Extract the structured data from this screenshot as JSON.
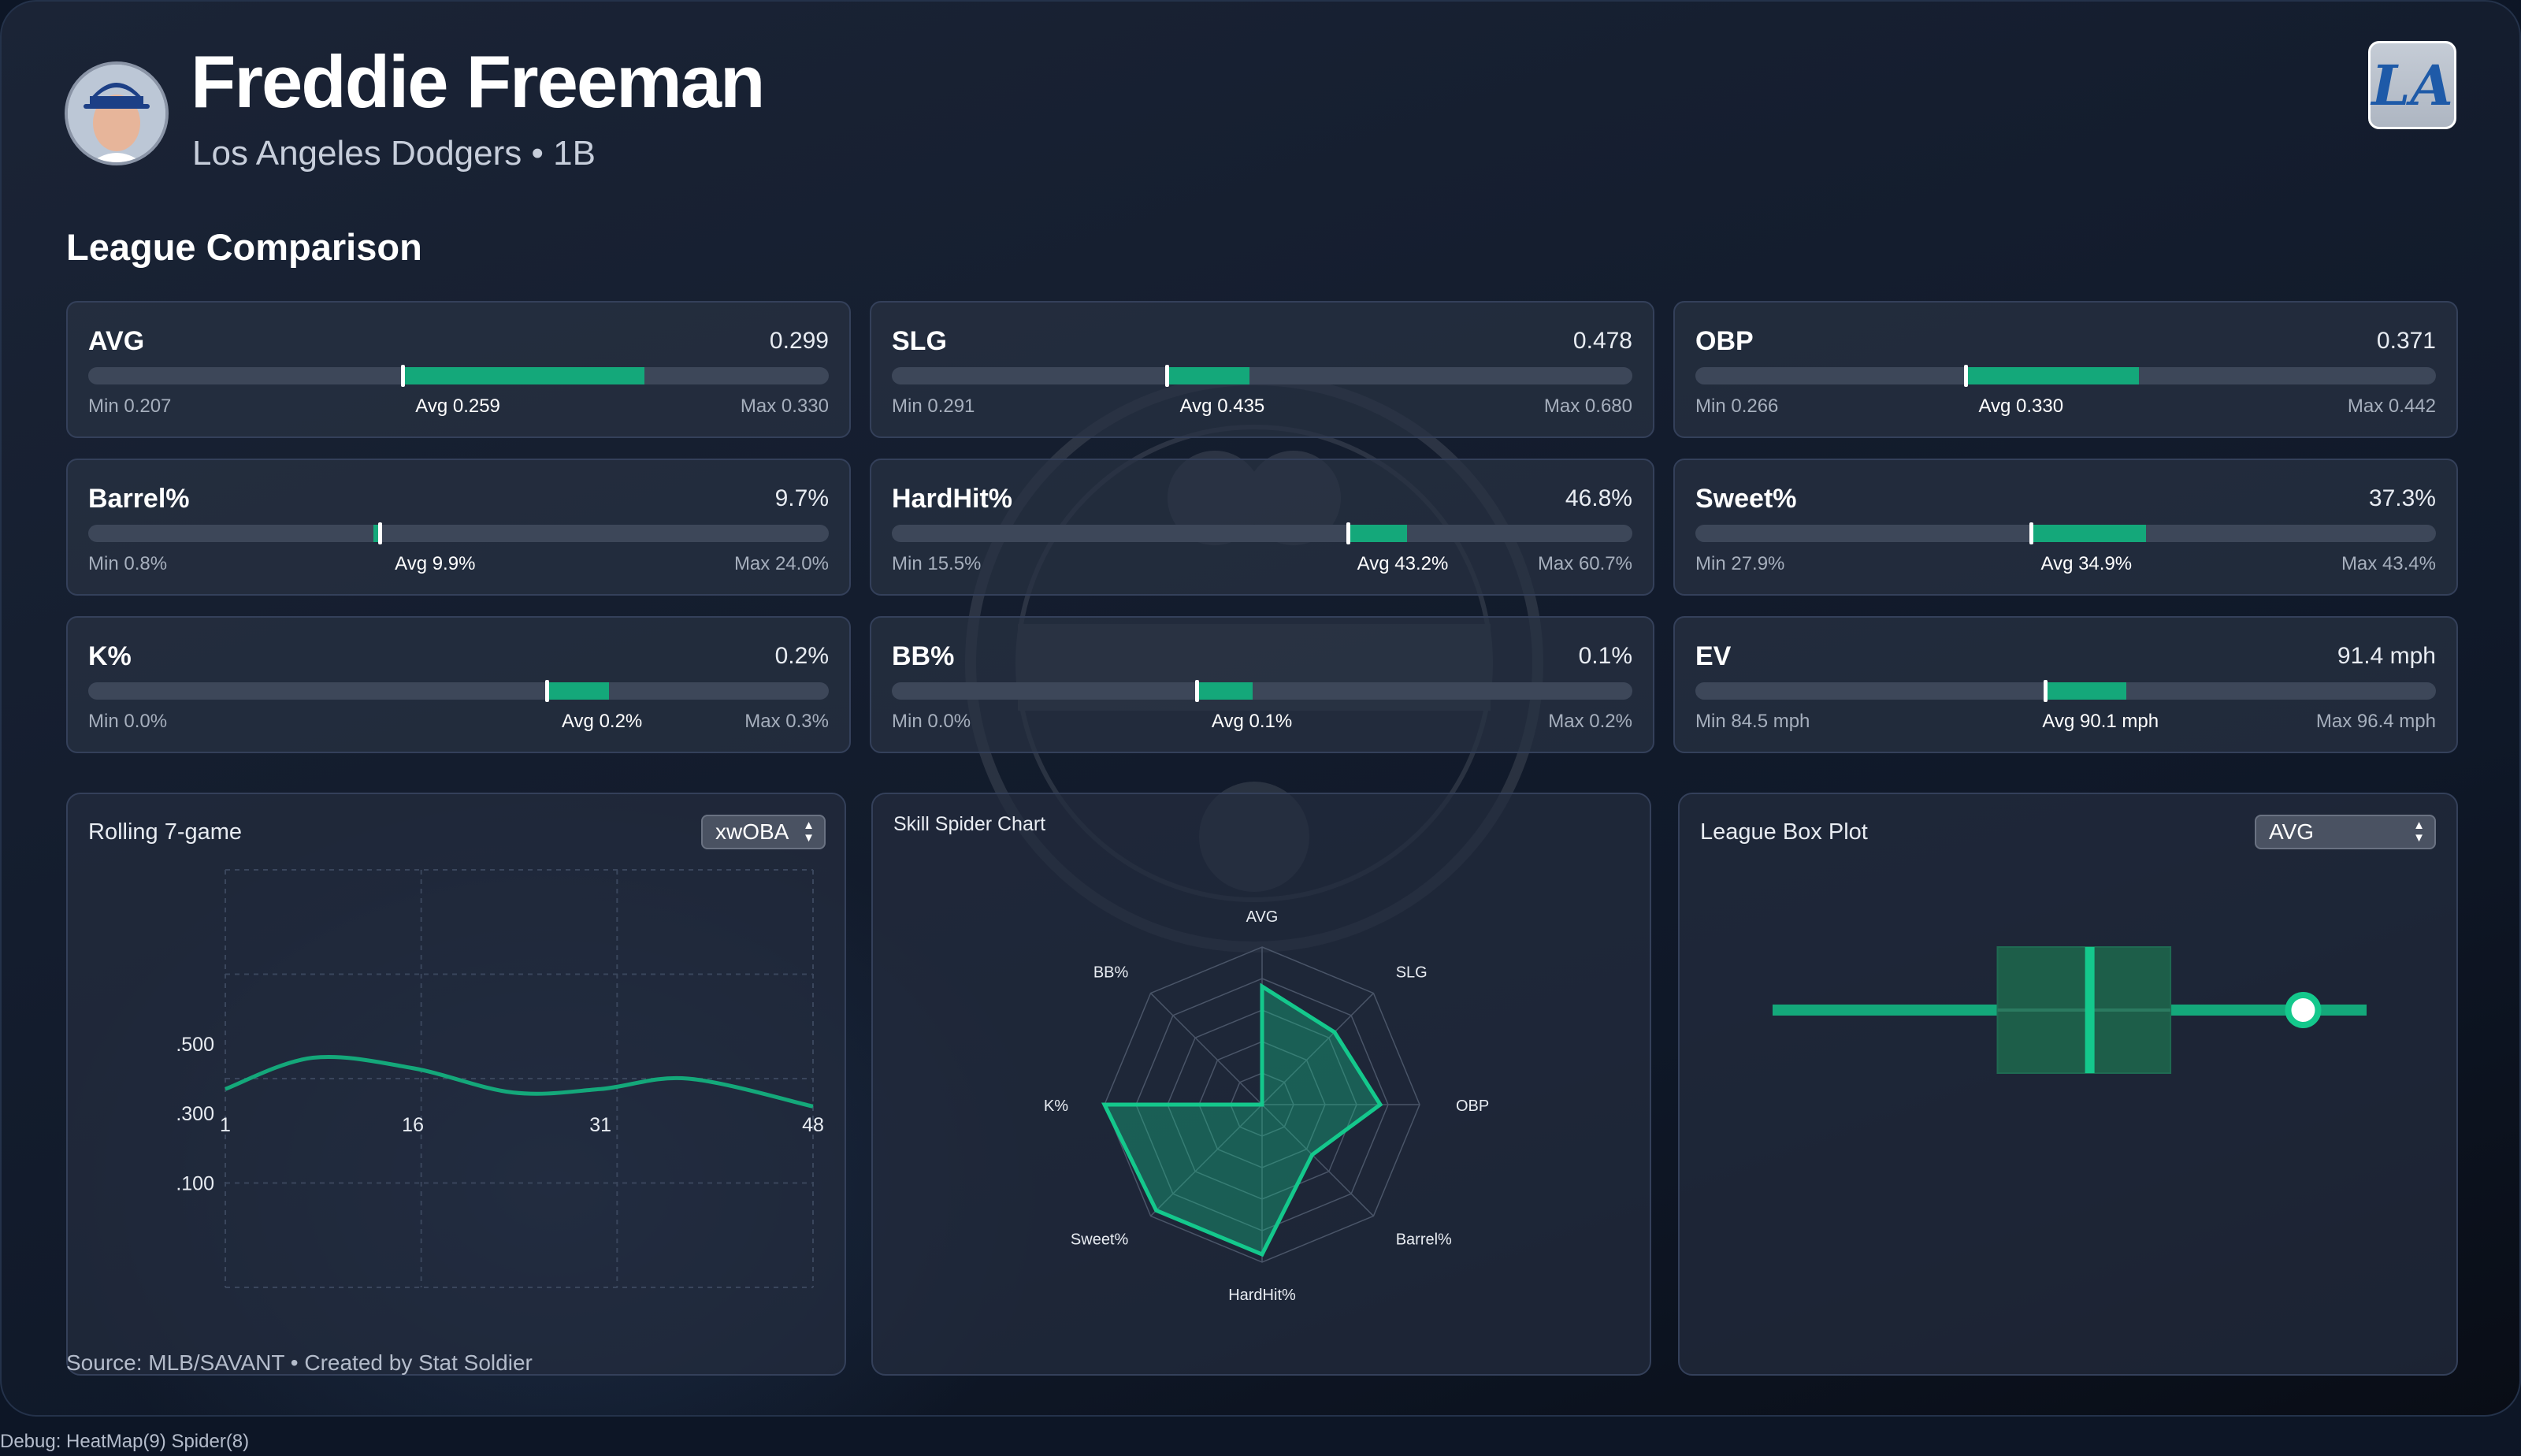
{
  "player": {
    "name": "Freddie Freeman",
    "team": "Los Angeles Dodgers",
    "position": "1B",
    "separator": "•"
  },
  "team_logo": {
    "text": "LA",
    "icon": "dodgers-logo-icon"
  },
  "section_title": "League Comparison",
  "stats": [
    {
      "name": "AVG",
      "value": "0.299",
      "min": "Min 0.207",
      "avg": "Avg 0.259",
      "max": "Max 0.330",
      "min_v": 0.207,
      "avg_v": 0.259,
      "val_v": 0.299,
      "max_v": 0.33
    },
    {
      "name": "SLG",
      "value": "0.478",
      "min": "Min 0.291",
      "avg": "Avg 0.435",
      "max": "Max 0.680",
      "min_v": 0.291,
      "avg_v": 0.435,
      "val_v": 0.478,
      "max_v": 0.68
    },
    {
      "name": "OBP",
      "value": "0.371",
      "min": "Min 0.266",
      "avg": "Avg 0.330",
      "max": "Max 0.442",
      "min_v": 0.266,
      "avg_v": 0.33,
      "val_v": 0.371,
      "max_v": 0.442
    },
    {
      "name": "Barrel%",
      "value": "9.7%",
      "min": "Min 0.8%",
      "avg": "Avg 9.9%",
      "max": "Max 24.0%",
      "min_v": 0.8,
      "avg_v": 9.9,
      "val_v": 9.7,
      "max_v": 24.0
    },
    {
      "name": "HardHit%",
      "value": "46.8%",
      "min": "Min 15.5%",
      "avg": "Avg 43.2%",
      "max": "Max 60.7%",
      "min_v": 15.5,
      "avg_v": 43.2,
      "val_v": 46.8,
      "max_v": 60.7
    },
    {
      "name": "Sweet%",
      "value": "37.3%",
      "min": "Min 27.9%",
      "avg": "Avg 34.9%",
      "max": "Max 43.4%",
      "min_v": 27.9,
      "avg_v": 34.9,
      "val_v": 37.3,
      "max_v": 43.4
    },
    {
      "name": "K%",
      "value": "0.2%",
      "min": "Min 0.0%",
      "avg": "Avg 0.2%",
      "max": "Max 0.3%",
      "min_v": 0.0,
      "avg_v": 0.185,
      "val_v": 0.21,
      "max_v": 0.3
    },
    {
      "name": "BB%",
      "value": "0.1%",
      "min": "Min 0.0%",
      "avg": "Avg 0.1%",
      "max": "Max 0.2%",
      "min_v": 0.0,
      "avg_v": 0.082,
      "val_v": 0.097,
      "max_v": 0.2
    },
    {
      "name": "EV",
      "value": "91.4 mph",
      "min": "Min 84.5 mph",
      "avg": "Avg 90.1 mph",
      "max": "Max 96.4 mph",
      "min_v": 84.5,
      "avg_v": 90.1,
      "val_v": 91.4,
      "max_v": 96.4
    }
  ],
  "rolling": {
    "title": "Rolling 7-game",
    "select_value": "xwOBA"
  },
  "spider": {
    "title": "Skill Spider Chart"
  },
  "boxplot": {
    "title": "League Box Plot",
    "select_value": "AVG"
  },
  "chart_data": [
    {
      "type": "line",
      "title": "Rolling 7-game",
      "x_ticks": [
        "1",
        "16",
        "31",
        "48"
      ],
      "y_ticks": [
        ".500",
        ".300",
        ".100"
      ],
      "x": [
        1,
        8,
        16,
        24,
        31,
        38,
        48
      ],
      "y": [
        0.37,
        0.46,
        0.43,
        0.36,
        0.37,
        0.4,
        0.32
      ],
      "xlim": [
        1,
        48
      ],
      "ylim": [
        -0.2,
        1.0
      ],
      "grid": true,
      "color": "#14a87a"
    },
    {
      "type": "radar",
      "title": "Skill Spider Chart",
      "axes": [
        "AVG",
        "SLG",
        "OBP",
        "Barrel%",
        "HardHit%",
        "Sweet%",
        "K%",
        "BB%"
      ],
      "values": [
        0.75,
        0.65,
        0.75,
        0.45,
        0.95,
        0.95,
        1.0,
        0.0
      ],
      "range": [
        0,
        1
      ],
      "rings": 5,
      "color": "#14c88c"
    },
    {
      "type": "box",
      "title": "League Box Plot",
      "metric": "AVG",
      "whisker_min": 0.207,
      "q1": 0.246,
      "median": 0.262,
      "q3": 0.276,
      "whisker_max": 0.31,
      "player_value": 0.299,
      "color": "#14a87a"
    }
  ],
  "footer": {
    "source": "Source: MLB/SAVANT • Created by Stat Soldier",
    "debug": "Debug: HeatMap(9) Spider(8)"
  }
}
